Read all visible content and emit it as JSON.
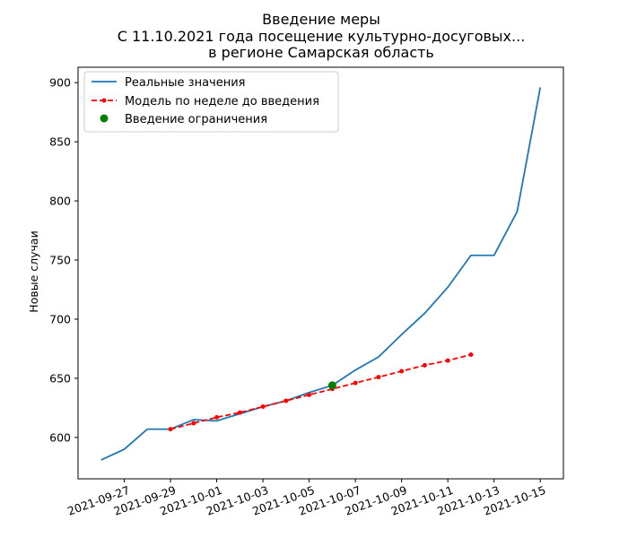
{
  "chart_data": {
    "type": "line",
    "title_lines": [
      "Введение меры",
      "С 11.10.2021 года посещение культурно-досуговых...",
      "в регионе Самарская область"
    ],
    "xlabel": "",
    "ylabel": "Новые случаи",
    "ylim": [
      565,
      913
    ],
    "yticks": [
      600,
      650,
      700,
      750,
      800,
      850,
      900
    ],
    "xlim": [
      "2021-09-25",
      "2021-10-16"
    ],
    "xticks": [
      "2021-09-27",
      "2021-09-29",
      "2021-10-01",
      "2021-10-03",
      "2021-10-05",
      "2021-10-07",
      "2021-10-09",
      "2021-10-11",
      "2021-10-13",
      "2021-10-15"
    ],
    "grid": false,
    "legend_position": "upper-left",
    "series": [
      {
        "name": "Реальные значения",
        "kind": "line",
        "color": "#1f77b4",
        "points": [
          [
            "2021-09-26",
            581
          ],
          [
            "2021-09-27",
            590
          ],
          [
            "2021-09-28",
            607
          ],
          [
            "2021-09-29",
            607
          ],
          [
            "2021-09-30",
            615
          ],
          [
            "2021-10-01",
            614
          ],
          [
            "2021-10-02",
            620
          ],
          [
            "2021-10-03",
            626
          ],
          [
            "2021-10-04",
            631
          ],
          [
            "2021-10-05",
            638
          ],
          [
            "2021-10-06",
            644
          ],
          [
            "2021-10-07",
            657
          ],
          [
            "2021-10-08",
            668
          ],
          [
            "2021-10-09",
            687
          ],
          [
            "2021-10-10",
            705
          ],
          [
            "2021-10-11",
            727
          ],
          [
            "2021-10-12",
            754
          ],
          [
            "2021-10-13",
            754
          ],
          [
            "2021-10-14",
            791
          ],
          [
            "2021-10-15",
            896
          ]
        ]
      },
      {
        "name": "Модель по неделе до введения",
        "kind": "dashed-line-markers",
        "color": "#ff0000",
        "points": [
          [
            "2021-09-29",
            607
          ],
          [
            "2021-09-30",
            612
          ],
          [
            "2021-10-01",
            617
          ],
          [
            "2021-10-02",
            621
          ],
          [
            "2021-10-03",
            626
          ],
          [
            "2021-10-04",
            631
          ],
          [
            "2021-10-05",
            636
          ],
          [
            "2021-10-06",
            641
          ],
          [
            "2021-10-07",
            646
          ],
          [
            "2021-10-08",
            651
          ],
          [
            "2021-10-09",
            656
          ],
          [
            "2021-10-10",
            661
          ],
          [
            "2021-10-11",
            665
          ],
          [
            "2021-10-12",
            670
          ]
        ]
      },
      {
        "name": "Введение ограничения",
        "kind": "scatter",
        "color": "#008000",
        "points": [
          [
            "2021-10-06",
            644
          ]
        ]
      }
    ]
  }
}
